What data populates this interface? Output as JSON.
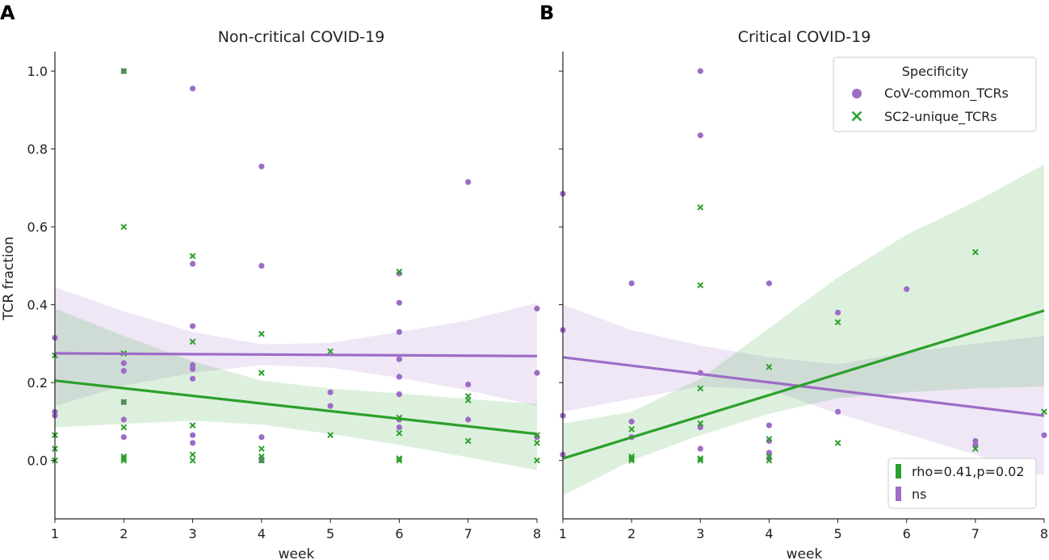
{
  "chart_data": [
    {
      "type": "scatter",
      "panel_label": "A",
      "title": "Non-critical COVID-19",
      "xlabel": "week",
      "ylabel": "TCR fraction",
      "xlim": [
        1,
        8
      ],
      "ylim": [
        -0.15,
        1.05
      ],
      "xticks": [
        "1",
        "2",
        "3",
        "4",
        "5",
        "6",
        "7",
        "8"
      ],
      "yticks": [
        "0.0",
        "0.2",
        "0.4",
        "0.6",
        "0.8",
        "1.0"
      ],
      "series": [
        {
          "name": "CoV-common_TCRs",
          "marker": "circle",
          "color": "#9d6cc6",
          "points": [
            [
              1,
              0.315
            ],
            [
              1,
              0.125
            ],
            [
              1,
              0.115
            ],
            [
              2,
              1.0
            ],
            [
              2,
              0.25
            ],
            [
              2,
              0.23
            ],
            [
              2,
              0.15
            ],
            [
              2,
              0.105
            ],
            [
              2,
              0.06
            ],
            [
              3,
              0.955
            ],
            [
              3,
              0.505
            ],
            [
              3,
              0.345
            ],
            [
              3,
              0.245
            ],
            [
              3,
              0.235
            ],
            [
              3,
              0.21
            ],
            [
              3,
              0.065
            ],
            [
              3,
              0.045
            ],
            [
              4,
              0.755
            ],
            [
              4,
              0.5
            ],
            [
              4,
              0.06
            ],
            [
              4,
              0.005
            ],
            [
              4,
              0.0
            ],
            [
              5,
              0.175
            ],
            [
              5,
              0.14
            ],
            [
              6,
              0.48
            ],
            [
              6,
              0.405
            ],
            [
              6,
              0.33
            ],
            [
              6,
              0.26
            ],
            [
              6,
              0.215
            ],
            [
              6,
              0.17
            ],
            [
              6,
              0.105
            ],
            [
              6,
              0.085
            ],
            [
              7,
              0.715
            ],
            [
              7,
              0.195
            ],
            [
              7,
              0.105
            ],
            [
              8,
              0.39
            ],
            [
              8,
              0.225
            ],
            [
              8,
              0.06
            ]
          ],
          "fit": {
            "y_start": 0.275,
            "y_end": 0.268
          },
          "ci_lower": [
            0.14,
            0.192,
            0.225,
            0.245,
            0.238,
            0.212,
            0.18,
            0.14
          ],
          "ci_upper": [
            0.445,
            0.383,
            0.33,
            0.298,
            0.302,
            0.33,
            0.36,
            0.405
          ]
        },
        {
          "name": "SC2-unique_TCRs",
          "marker": "x",
          "color": "#2ca02c",
          "points": [
            [
              1,
              0.27
            ],
            [
              1,
              0.065
            ],
            [
              1,
              0.03
            ],
            [
              1,
              0.0
            ],
            [
              2,
              1.0
            ],
            [
              2,
              0.6
            ],
            [
              2,
              0.275
            ],
            [
              2,
              0.15
            ],
            [
              2,
              0.085
            ],
            [
              2,
              0.01
            ],
            [
              2,
              0.005
            ],
            [
              2,
              0.0
            ],
            [
              3,
              0.525
            ],
            [
              3,
              0.305
            ],
            [
              3,
              0.09
            ],
            [
              3,
              0.015
            ],
            [
              3,
              0.0
            ],
            [
              4,
              0.325
            ],
            [
              4,
              0.225
            ],
            [
              4,
              0.03
            ],
            [
              4,
              0.01
            ],
            [
              4,
              0.0
            ],
            [
              5,
              0.28
            ],
            [
              5,
              0.065
            ],
            [
              6,
              0.485
            ],
            [
              6,
              0.11
            ],
            [
              6,
              0.07
            ],
            [
              6,
              0.005
            ],
            [
              6,
              0.0
            ],
            [
              7,
              0.165
            ],
            [
              7,
              0.155
            ],
            [
              7,
              0.05
            ],
            [
              8,
              0.065
            ],
            [
              8,
              0.045
            ],
            [
              8,
              0.0
            ]
          ],
          "fit": {
            "y_start": 0.205,
            "y_end": 0.068
          },
          "ci_lower": [
            0.085,
            0.094,
            0.102,
            0.092,
            0.068,
            0.04,
            0.008,
            -0.025
          ],
          "ci_upper": [
            0.39,
            0.32,
            0.255,
            0.205,
            0.185,
            0.172,
            0.158,
            0.145
          ]
        }
      ],
      "stats_legend": []
    },
    {
      "type": "scatter",
      "panel_label": "B",
      "title": "Critical COVID-19",
      "xlabel": "week",
      "ylabel": "",
      "xlim": [
        1,
        8
      ],
      "ylim": [
        -0.15,
        1.05
      ],
      "xticks": [
        "1",
        "2",
        "3",
        "4",
        "5",
        "6",
        "7",
        "8"
      ],
      "yticks": [],
      "series": [
        {
          "name": "CoV-common_TCRs",
          "marker": "circle",
          "color": "#9d6cc6",
          "points": [
            [
              1,
              0.685
            ],
            [
              1,
              0.335
            ],
            [
              1,
              0.115
            ],
            [
              1,
              0.015
            ],
            [
              2,
              0.455
            ],
            [
              2,
              0.1
            ],
            [
              2,
              0.06
            ],
            [
              3,
              1.0
            ],
            [
              3,
              0.835
            ],
            [
              3,
              0.225
            ],
            [
              3,
              0.085
            ],
            [
              3,
              0.03
            ],
            [
              4,
              0.455
            ],
            [
              4,
              0.09
            ],
            [
              4,
              0.05
            ],
            [
              4,
              0.02
            ],
            [
              4,
              0.005
            ],
            [
              5,
              0.38
            ],
            [
              5,
              0.125
            ],
            [
              6,
              0.44
            ],
            [
              7,
              0.05
            ],
            [
              7,
              0.04
            ],
            [
              8,
              0.065
            ]
          ],
          "fit": {
            "y_start": 0.265,
            "y_end": 0.115
          },
          "ci_lower": [
            0.125,
            0.158,
            0.19,
            0.182,
            0.12,
            0.068,
            0.015,
            -0.04
          ],
          "ci_upper": [
            0.4,
            0.335,
            0.295,
            0.265,
            0.247,
            0.278,
            0.3,
            0.32
          ]
        },
        {
          "name": "SC2-unique_TCRs",
          "marker": "x",
          "color": "#2ca02c",
          "points": [
            [
              2,
              0.08
            ],
            [
              2,
              0.01
            ],
            [
              2,
              0.005
            ],
            [
              2,
              0.0
            ],
            [
              3,
              0.65
            ],
            [
              3,
              0.45
            ],
            [
              3,
              0.185
            ],
            [
              3,
              0.095
            ],
            [
              3,
              0.005
            ],
            [
              3,
              0.0
            ],
            [
              4,
              0.24
            ],
            [
              4,
              0.055
            ],
            [
              4,
              0.01
            ],
            [
              4,
              0.0
            ],
            [
              5,
              0.355
            ],
            [
              5,
              0.045
            ],
            [
              7,
              0.535
            ],
            [
              7,
              0.03
            ],
            [
              8,
              0.125
            ]
          ],
          "fit": {
            "y_start": 0.005,
            "y_end": 0.385
          },
          "ci_lower": [
            -0.09,
            0.0,
            0.065,
            0.12,
            0.16,
            0.175,
            0.185,
            0.19
          ],
          "ci_upper": [
            0.095,
            0.125,
            0.21,
            0.34,
            0.47,
            0.58,
            0.665,
            0.76
          ]
        }
      ],
      "stats_legend": [
        {
          "label": "rho=0.41,p=0.02",
          "color": "#2ca02c"
        },
        {
          "label": "ns",
          "color": "#9d6cc6"
        }
      ]
    }
  ],
  "legend": {
    "title": "Specificity",
    "items": [
      {
        "label": "CoV-common_TCRs",
        "marker": "circle",
        "color": "#9d6cc6"
      },
      {
        "label": "SC2-unique_TCRs",
        "marker": "x",
        "color": "#2ca02c"
      }
    ]
  }
}
